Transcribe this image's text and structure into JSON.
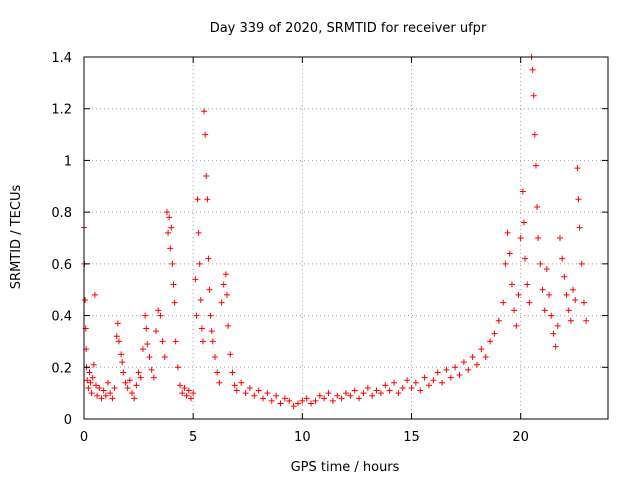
{
  "chart_data": {
    "type": "scatter",
    "title": "Day 339 of 2020, SRMTID for receiver ufpr",
    "xlabel": "GPS time / hours",
    "ylabel": "SRMTID / TECUs",
    "xlim": [
      0,
      24
    ],
    "ylim": [
      0,
      1.4
    ],
    "xticks": [
      0,
      5,
      10,
      15,
      20
    ],
    "xtick_labels": [
      "0",
      "5",
      "10",
      "15",
      "20"
    ],
    "yticks": [
      0,
      0.2,
      0.4,
      0.6,
      0.8,
      1.0,
      1.2,
      1.4
    ],
    "ytick_labels": [
      "0",
      "0.2",
      "0.4",
      "0.6",
      "0.8",
      "1",
      "1.2",
      "1.4"
    ],
    "grid": true,
    "marker": "+",
    "color": "#ff0000",
    "series": [
      {
        "name": "SRMTID",
        "points": [
          [
            0.0,
            0.74
          ],
          [
            0.02,
            0.6
          ],
          [
            0.05,
            0.46
          ],
          [
            0.08,
            0.35
          ],
          [
            0.1,
            0.27
          ],
          [
            0.12,
            0.2
          ],
          [
            0.15,
            0.15
          ],
          [
            0.2,
            0.12
          ],
          [
            0.25,
            0.18
          ],
          [
            0.3,
            0.14
          ],
          [
            0.35,
            0.1
          ],
          [
            0.4,
            0.16
          ],
          [
            0.45,
            0.21
          ],
          [
            0.5,
            0.48
          ],
          [
            0.55,
            0.13
          ],
          [
            0.6,
            0.09
          ],
          [
            0.7,
            0.12
          ],
          [
            0.8,
            0.08
          ],
          [
            0.9,
            0.11
          ],
          [
            1.0,
            0.09
          ],
          [
            1.1,
            0.14
          ],
          [
            1.2,
            0.1
          ],
          [
            1.3,
            0.08
          ],
          [
            1.4,
            0.12
          ],
          [
            1.5,
            0.32
          ],
          [
            1.55,
            0.37
          ],
          [
            1.6,
            0.3
          ],
          [
            1.7,
            0.25
          ],
          [
            1.75,
            0.22
          ],
          [
            1.8,
            0.18
          ],
          [
            1.9,
            0.14
          ],
          [
            2.0,
            0.12
          ],
          [
            2.1,
            0.15
          ],
          [
            2.2,
            0.1
          ],
          [
            2.3,
            0.08
          ],
          [
            2.4,
            0.13
          ],
          [
            2.5,
            0.18
          ],
          [
            2.6,
            0.16
          ],
          [
            2.7,
            0.27
          ],
          [
            2.8,
            0.4
          ],
          [
            2.85,
            0.35
          ],
          [
            2.9,
            0.29
          ],
          [
            3.0,
            0.24
          ],
          [
            3.1,
            0.19
          ],
          [
            3.2,
            0.16
          ],
          [
            3.3,
            0.34
          ],
          [
            3.4,
            0.42
          ],
          [
            3.5,
            0.4
          ],
          [
            3.6,
            0.3
          ],
          [
            3.7,
            0.24
          ],
          [
            3.8,
            0.8
          ],
          [
            3.85,
            0.72
          ],
          [
            3.9,
            0.78
          ],
          [
            3.95,
            0.66
          ],
          [
            4.0,
            0.74
          ],
          [
            4.05,
            0.6
          ],
          [
            4.1,
            0.52
          ],
          [
            4.15,
            0.45
          ],
          [
            4.2,
            0.3
          ],
          [
            4.3,
            0.2
          ],
          [
            4.4,
            0.13
          ],
          [
            4.5,
            0.1
          ],
          [
            4.6,
            0.12
          ],
          [
            4.7,
            0.09
          ],
          [
            4.8,
            0.11
          ],
          [
            4.9,
            0.08
          ],
          [
            5.0,
            0.1
          ],
          [
            5.1,
            0.54
          ],
          [
            5.15,
            0.4
          ],
          [
            5.2,
            0.85
          ],
          [
            5.25,
            0.72
          ],
          [
            5.3,
            0.6
          ],
          [
            5.35,
            0.46
          ],
          [
            5.4,
            0.35
          ],
          [
            5.45,
            0.3
          ],
          [
            5.5,
            1.19
          ],
          [
            5.55,
            1.1
          ],
          [
            5.6,
            0.94
          ],
          [
            5.65,
            0.85
          ],
          [
            5.7,
            0.62
          ],
          [
            5.75,
            0.5
          ],
          [
            5.8,
            0.4
          ],
          [
            5.85,
            0.34
          ],
          [
            5.9,
            0.3
          ],
          [
            6.0,
            0.24
          ],
          [
            6.1,
            0.18
          ],
          [
            6.2,
            0.14
          ],
          [
            6.3,
            0.45
          ],
          [
            6.4,
            0.52
          ],
          [
            6.5,
            0.56
          ],
          [
            6.55,
            0.48
          ],
          [
            6.6,
            0.36
          ],
          [
            6.7,
            0.25
          ],
          [
            6.8,
            0.18
          ],
          [
            6.9,
            0.13
          ],
          [
            7.0,
            0.11
          ],
          [
            7.2,
            0.14
          ],
          [
            7.4,
            0.1
          ],
          [
            7.6,
            0.12
          ],
          [
            7.8,
            0.09
          ],
          [
            8.0,
            0.11
          ],
          [
            8.2,
            0.08
          ],
          [
            8.4,
            0.1
          ],
          [
            8.6,
            0.07
          ],
          [
            8.8,
            0.09
          ],
          [
            9.0,
            0.06
          ],
          [
            9.2,
            0.08
          ],
          [
            9.4,
            0.07
          ],
          [
            9.6,
            0.05
          ],
          [
            9.8,
            0.06
          ],
          [
            10.0,
            0.07
          ],
          [
            10.2,
            0.08
          ],
          [
            10.4,
            0.06
          ],
          [
            10.6,
            0.07
          ],
          [
            10.8,
            0.09
          ],
          [
            11.0,
            0.08
          ],
          [
            11.2,
            0.1
          ],
          [
            11.4,
            0.07
          ],
          [
            11.6,
            0.09
          ],
          [
            11.8,
            0.08
          ],
          [
            12.0,
            0.1
          ],
          [
            12.2,
            0.09
          ],
          [
            12.4,
            0.11
          ],
          [
            12.6,
            0.08
          ],
          [
            12.8,
            0.1
          ],
          [
            13.0,
            0.12
          ],
          [
            13.2,
            0.09
          ],
          [
            13.4,
            0.11
          ],
          [
            13.6,
            0.1
          ],
          [
            13.8,
            0.13
          ],
          [
            14.0,
            0.11
          ],
          [
            14.2,
            0.14
          ],
          [
            14.4,
            0.1
          ],
          [
            14.6,
            0.12
          ],
          [
            14.8,
            0.15
          ],
          [
            15.0,
            0.12
          ],
          [
            15.2,
            0.14
          ],
          [
            15.4,
            0.11
          ],
          [
            15.6,
            0.16
          ],
          [
            15.8,
            0.13
          ],
          [
            16.0,
            0.15
          ],
          [
            16.2,
            0.18
          ],
          [
            16.4,
            0.14
          ],
          [
            16.6,
            0.19
          ],
          [
            16.8,
            0.16
          ],
          [
            17.0,
            0.2
          ],
          [
            17.2,
            0.17
          ],
          [
            17.4,
            0.22
          ],
          [
            17.6,
            0.19
          ],
          [
            17.8,
            0.24
          ],
          [
            18.0,
            0.21
          ],
          [
            18.2,
            0.27
          ],
          [
            18.4,
            0.24
          ],
          [
            18.6,
            0.3
          ],
          [
            18.8,
            0.33
          ],
          [
            19.0,
            0.38
          ],
          [
            19.2,
            0.45
          ],
          [
            19.3,
            0.6
          ],
          [
            19.4,
            0.72
          ],
          [
            19.5,
            0.64
          ],
          [
            19.6,
            0.52
          ],
          [
            19.7,
            0.42
          ],
          [
            19.8,
            0.36
          ],
          [
            19.9,
            0.48
          ],
          [
            20.0,
            0.7
          ],
          [
            20.1,
            0.88
          ],
          [
            20.15,
            0.76
          ],
          [
            20.2,
            0.62
          ],
          [
            20.3,
            0.52
          ],
          [
            20.4,
            0.45
          ],
          [
            20.5,
            1.4
          ],
          [
            20.55,
            1.35
          ],
          [
            20.6,
            1.25
          ],
          [
            20.65,
            1.1
          ],
          [
            20.7,
            0.98
          ],
          [
            20.75,
            0.82
          ],
          [
            20.8,
            0.7
          ],
          [
            20.9,
            0.6
          ],
          [
            21.0,
            0.5
          ],
          [
            21.1,
            0.42
          ],
          [
            21.2,
            0.58
          ],
          [
            21.3,
            0.48
          ],
          [
            21.4,
            0.4
          ],
          [
            21.5,
            0.33
          ],
          [
            21.6,
            0.28
          ],
          [
            21.7,
            0.36
          ],
          [
            21.8,
            0.7
          ],
          [
            21.9,
            0.62
          ],
          [
            22.0,
            0.55
          ],
          [
            22.1,
            0.48
          ],
          [
            22.2,
            0.42
          ],
          [
            22.3,
            0.38
          ],
          [
            22.4,
            0.5
          ],
          [
            22.5,
            0.46
          ],
          [
            22.6,
            0.97
          ],
          [
            22.65,
            0.85
          ],
          [
            22.7,
            0.74
          ],
          [
            22.8,
            0.6
          ],
          [
            22.9,
            0.45
          ],
          [
            23.0,
            0.38
          ]
        ]
      }
    ]
  }
}
